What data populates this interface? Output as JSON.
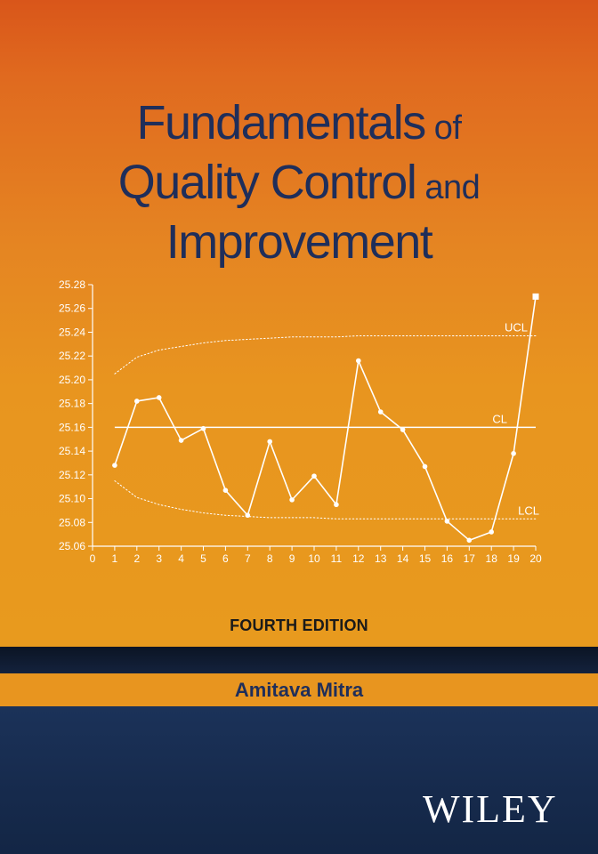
{
  "cover": {
    "title_line1_big": "Fundamentals",
    "title_line1_small": " of",
    "title_line2_big": "Quality Control",
    "title_line2_small": " and",
    "title_line3_big": "Improvement",
    "edition": "FOURTH EDITION",
    "author": "Amitava Mitra",
    "publisher": "WILEY",
    "colors": {
      "orange": "#e8951f",
      "orange_top": "#d9561a",
      "navy": "#162a4c",
      "title_text": "#1f2e5a",
      "chart_line": "#ffffff"
    }
  },
  "chart_data": {
    "type": "line",
    "x": [
      1,
      2,
      3,
      4,
      5,
      6,
      7,
      8,
      9,
      10,
      11,
      12,
      13,
      14,
      15,
      16,
      17,
      18,
      19,
      20
    ],
    "series": [
      {
        "values": [
          25.128,
          25.182,
          25.185,
          25.149,
          25.159,
          25.107,
          25.086,
          25.148,
          25.099,
          25.119,
          25.095,
          25.216,
          25.173,
          25.158,
          25.127,
          25.081,
          25.065,
          25.072,
          25.138,
          25.27
        ]
      }
    ],
    "xlim": [
      0,
      20
    ],
    "ylim": [
      25.06,
      25.28
    ],
    "x_ticks": [
      "0",
      "1",
      "2",
      "3",
      "4",
      "5",
      "6",
      "7",
      "8",
      "9",
      "10",
      "11",
      "12",
      "13",
      "14",
      "15",
      "16",
      "17",
      "18",
      "19",
      "20"
    ],
    "y_ticks": [
      "25.06",
      "25.08",
      "25.10",
      "25.12",
      "25.14",
      "25.16",
      "25.18",
      "25.20",
      "25.22",
      "25.24",
      "25.26",
      "25.28"
    ],
    "center_line": {
      "label": "CL",
      "value": 25.16
    },
    "ucl": {
      "label": "UCL",
      "x": [
        1,
        2,
        3,
        4,
        5,
        6,
        7,
        8,
        9,
        10,
        11,
        12,
        13,
        14,
        15,
        16,
        17,
        18,
        19,
        20
      ],
      "values": [
        25.205,
        25.219,
        25.225,
        25.228,
        25.231,
        25.233,
        25.234,
        25.235,
        25.236,
        25.236,
        25.236,
        25.237,
        25.237,
        25.237,
        25.237,
        25.237,
        25.237,
        25.237,
        25.237,
        25.237
      ]
    },
    "lcl": {
      "label": "LCL",
      "x": [
        1,
        2,
        3,
        4,
        5,
        6,
        7,
        8,
        9,
        10,
        11,
        12,
        13,
        14,
        15,
        16,
        17,
        18,
        19,
        20
      ],
      "values": [
        25.115,
        25.101,
        25.095,
        25.091,
        25.088,
        25.086,
        25.085,
        25.084,
        25.084,
        25.084,
        25.083,
        25.083,
        25.083,
        25.083,
        25.083,
        25.083,
        25.083,
        25.083,
        25.083,
        25.083
      ]
    },
    "last_point_marker": "square",
    "grid": false
  }
}
